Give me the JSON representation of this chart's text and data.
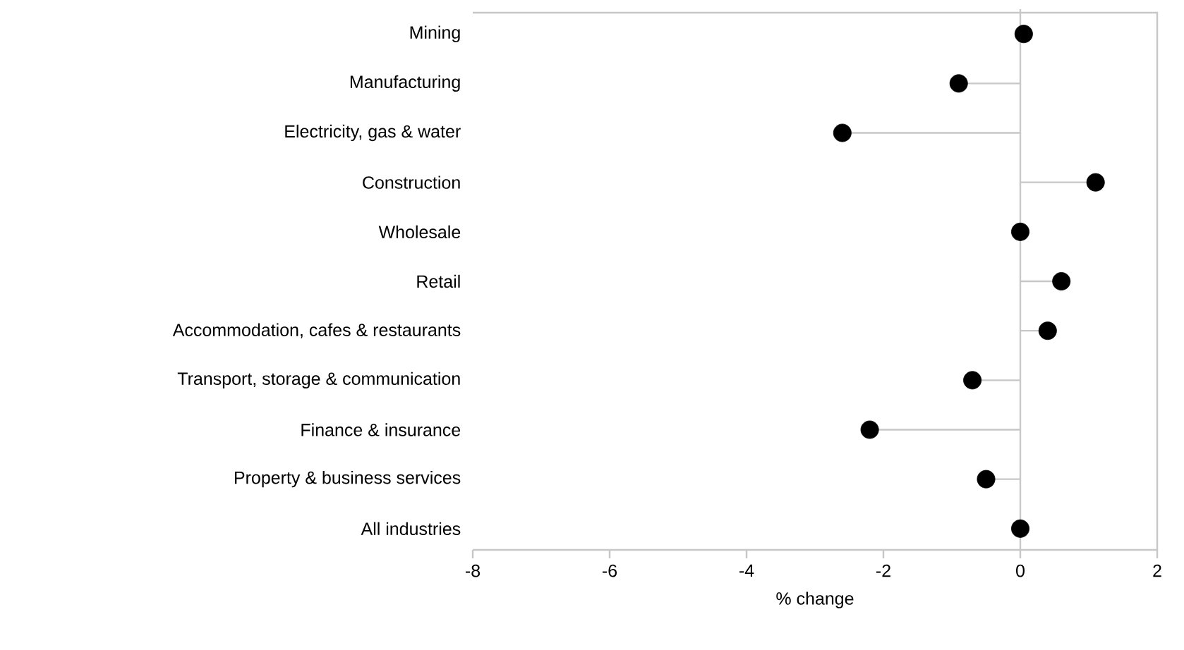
{
  "chart_data": {
    "type": "lollipop",
    "orientation": "horizontal",
    "xlabel": "% change",
    "categories": [
      "Mining",
      "Manufacturing",
      "Electricity, gas & water",
      "Construction",
      "Wholesale",
      "Retail",
      "Accommodation, cafes & restaurants",
      "Transport, storage & communication",
      "Finance & insurance",
      "Property & business services",
      "All industries"
    ],
    "values": [
      0.05,
      -0.9,
      -2.6,
      1.1,
      0.0,
      0.6,
      0.4,
      -0.7,
      -2.2,
      -0.5,
      0.0
    ],
    "color": "#000000",
    "xlim": [
      -8,
      2
    ],
    "xticks": [
      -8,
      -6,
      -4,
      -2,
      0,
      2
    ],
    "ref_lines": [
      {
        "axis": "x",
        "value": 0,
        "color": "#c8c8c8"
      }
    ],
    "grid": false
  }
}
